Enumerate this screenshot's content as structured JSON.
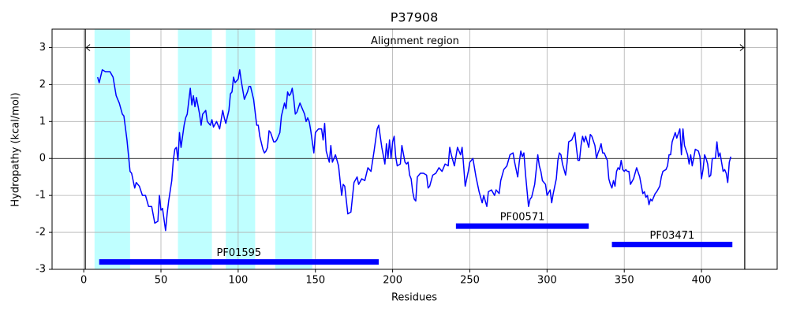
{
  "chart_data": {
    "type": "line",
    "title": "P37908",
    "xlabel": "Residues",
    "ylabel": "Hydropathy (kcal/mol)",
    "color": "#0000ff",
    "x": [
      9,
      10,
      12,
      14,
      17,
      19,
      21,
      23,
      25,
      26,
      28,
      30,
      31,
      33,
      34,
      36,
      38,
      40,
      42,
      44,
      46,
      48,
      49,
      50,
      51,
      53,
      54,
      55,
      57,
      58,
      59,
      60,
      61,
      62,
      63,
      65,
      66,
      67,
      69,
      70,
      71,
      72,
      73,
      75,
      76,
      77,
      79,
      80,
      82,
      83,
      84,
      86,
      88,
      90,
      91,
      92,
      94,
      95,
      96,
      97,
      98,
      99,
      100,
      101,
      102,
      104,
      106,
      107,
      108,
      110,
      111,
      112,
      113,
      114,
      116,
      117,
      118,
      119,
      120,
      121,
      123,
      124,
      125,
      127,
      128,
      130,
      131,
      132,
      133,
      134,
      135,
      136,
      137,
      138,
      140,
      141,
      142,
      143,
      144,
      145,
      146,
      147,
      149,
      150,
      152,
      154,
      155,
      156,
      157,
      158,
      159,
      160,
      161,
      163,
      165,
      167,
      168,
      169,
      171,
      173,
      175,
      177,
      178,
      180,
      182,
      184,
      186,
      188,
      190,
      191,
      193,
      195,
      196,
      197,
      198,
      199,
      200,
      201,
      202,
      203,
      205,
      206,
      208,
      209,
      210,
      211,
      212,
      213,
      214,
      215,
      216,
      218,
      220,
      222,
      223,
      224,
      226,
      228,
      230,
      232,
      234,
      236,
      237,
      238,
      240,
      241,
      242,
      243,
      244,
      245,
      246,
      247,
      249,
      250,
      252,
      254,
      256,
      258,
      259,
      261,
      262,
      264,
      266,
      267,
      269,
      270,
      272,
      274,
      276,
      278,
      279,
      281,
      282,
      283,
      284,
      285,
      286,
      288,
      289,
      290,
      292,
      294,
      295,
      296,
      297,
      299,
      300,
      302,
      303,
      304,
      306,
      307,
      308,
      309,
      310,
      312,
      313,
      314,
      316,
      318,
      319,
      320,
      321,
      322,
      323,
      324,
      325,
      327,
      328,
      329,
      331,
      332,
      333,
      334,
      335,
      336,
      337,
      339,
      340,
      341,
      342,
      343,
      344,
      345,
      346,
      347,
      348,
      349,
      350,
      351,
      352,
      353,
      354,
      356,
      358,
      360,
      362,
      363,
      364,
      365,
      366,
      367,
      368,
      370,
      371,
      373,
      374,
      375,
      377,
      378,
      379,
      380,
      381,
      383,
      384,
      386,
      387,
      388,
      389,
      391,
      392,
      393,
      394,
      396,
      398,
      399,
      400,
      401,
      402,
      403,
      404,
      405,
      406,
      407,
      409,
      410,
      411,
      412,
      414,
      415,
      416,
      417,
      418,
      419
    ],
    "values": [
      2.2,
      2.05,
      2.4,
      2.35,
      2.35,
      2.2,
      1.7,
      1.5,
      1.2,
      1.15,
      0.5,
      -0.35,
      -0.4,
      -0.8,
      -0.65,
      -0.75,
      -1.0,
      -1.0,
      -1.3,
      -1.3,
      -1.75,
      -1.7,
      -1.0,
      -1.4,
      -1.35,
      -1.95,
      -1.5,
      -1.15,
      -0.6,
      -0.05,
      0.25,
      0.3,
      -0.05,
      0.7,
      0.3,
      0.9,
      1.1,
      1.2,
      1.9,
      1.45,
      1.7,
      1.4,
      1.65,
      1.2,
      0.9,
      1.2,
      1.3,
      1.0,
      0.9,
      1.05,
      0.85,
      1.0,
      0.8,
      1.3,
      1.1,
      0.95,
      1.3,
      1.75,
      1.8,
      2.2,
      2.05,
      2.1,
      2.15,
      2.4,
      2.1,
      1.6,
      1.8,
      1.95,
      1.95,
      1.6,
      1.25,
      0.9,
      0.9,
      0.6,
      0.25,
      0.15,
      0.2,
      0.3,
      0.75,
      0.7,
      0.45,
      0.45,
      0.5,
      0.7,
      1.15,
      1.5,
      1.35,
      1.8,
      1.7,
      1.75,
      1.9,
      1.6,
      1.2,
      1.25,
      1.5,
      1.4,
      1.3,
      1.2,
      1.0,
      1.1,
      1.0,
      0.75,
      0.15,
      0.7,
      0.8,
      0.8,
      0.5,
      0.95,
      0.2,
      0.05,
      -0.1,
      0.35,
      -0.1,
      0.1,
      -0.2,
      -1.0,
      -0.7,
      -0.75,
      -1.5,
      -1.45,
      -0.65,
      -0.5,
      -0.7,
      -0.55,
      -0.6,
      -0.25,
      -0.35,
      0.2,
      0.8,
      0.9,
      0.3,
      -0.15,
      0.4,
      0.0,
      0.5,
      0.0,
      0.45,
      0.6,
      0.05,
      -0.2,
      -0.15,
      0.35,
      -0.1,
      -0.15,
      -0.1,
      -0.45,
      -0.55,
      -0.9,
      -1.1,
      -1.15,
      -0.5,
      -0.4,
      -0.4,
      -0.45,
      -0.8,
      -0.75,
      -0.45,
      -0.4,
      -0.25,
      -0.35,
      -0.15,
      -0.2,
      0.3,
      0.1,
      -0.2,
      0.05,
      0.3,
      0.2,
      0.1,
      0.3,
      -0.2,
      -0.75,
      -0.35,
      -0.1,
      0.0,
      -0.5,
      -0.9,
      -1.2,
      -1.0,
      -1.3,
      -0.9,
      -0.85,
      -1.0,
      -0.85,
      -0.95,
      -0.6,
      -0.3,
      -0.2,
      0.1,
      0.15,
      -0.1,
      -0.5,
      -0.1,
      0.2,
      0.05,
      0.15,
      -0.4,
      -1.3,
      -1.1,
      -1.05,
      -0.7,
      0.1,
      -0.2,
      -0.35,
      -0.6,
      -0.7,
      -1.0,
      -0.85,
      -1.2,
      -0.95,
      -0.55,
      -0.05,
      0.15,
      0.1,
      -0.15,
      -0.45,
      -0.1,
      0.45,
      0.5,
      0.7,
      0.3,
      -0.05,
      -0.05,
      0.35,
      0.6,
      0.45,
      0.6,
      0.3,
      0.65,
      0.6,
      0.35,
      0.0,
      0.15,
      0.25,
      0.4,
      0.15,
      0.15,
      -0.05,
      -0.55,
      -0.7,
      -0.8,
      -0.6,
      -0.75,
      -0.35,
      -0.25,
      -0.3,
      -0.05,
      -0.3,
      -0.35,
      -0.3,
      -0.35,
      -0.35,
      -0.7,
      -0.55,
      -0.25,
      -0.5,
      -0.95,
      -0.9,
      -1.05,
      -1.0,
      -1.25,
      -1.1,
      -1.15,
      -0.95,
      -0.9,
      -0.75,
      -0.5,
      -0.35,
      -0.3,
      -0.2,
      0.1,
      0.1,
      0.45,
      0.7,
      0.55,
      0.8,
      0.1,
      0.8,
      0.35,
      0.1,
      -0.15,
      0.1,
      -0.2,
      0.25,
      0.2,
      0.05,
      -0.55,
      -0.3,
      0.1,
      0.0,
      -0.15,
      -0.5,
      -0.45,
      0.0,
      0.0,
      0.45,
      0.05,
      0.15,
      -0.35,
      -0.3,
      -0.4,
      -0.65,
      -0.1,
      0.05
    ],
    "xlim": [
      -20.5,
      449
    ],
    "ylim": [
      -3,
      3.5
    ],
    "xticks": [
      0,
      50,
      100,
      150,
      200,
      250,
      300,
      350,
      400
    ],
    "yticks": [
      -3,
      -2,
      -1,
      0,
      1,
      2,
      3
    ],
    "grid": true,
    "hline": 0,
    "regions": [
      [
        7,
        30
      ],
      [
        61,
        83
      ],
      [
        92,
        111
      ],
      [
        124,
        148
      ]
    ],
    "region_color": "#00ffff",
    "region_opacity": 0.25,
    "alignment": {
      "label": "Alignment region",
      "start": 1,
      "end": 428,
      "y": 3
    },
    "domain_color": "#0000ff",
    "domains": [
      {
        "label": "PF01595",
        "start": 10,
        "end": 191,
        "y": -2.8
      },
      {
        "label": "PF00571",
        "start": 241,
        "end": 327,
        "y": -1.83
      },
      {
        "label": "PF03471",
        "start": 342,
        "end": 420,
        "y": -2.33
      }
    ]
  }
}
